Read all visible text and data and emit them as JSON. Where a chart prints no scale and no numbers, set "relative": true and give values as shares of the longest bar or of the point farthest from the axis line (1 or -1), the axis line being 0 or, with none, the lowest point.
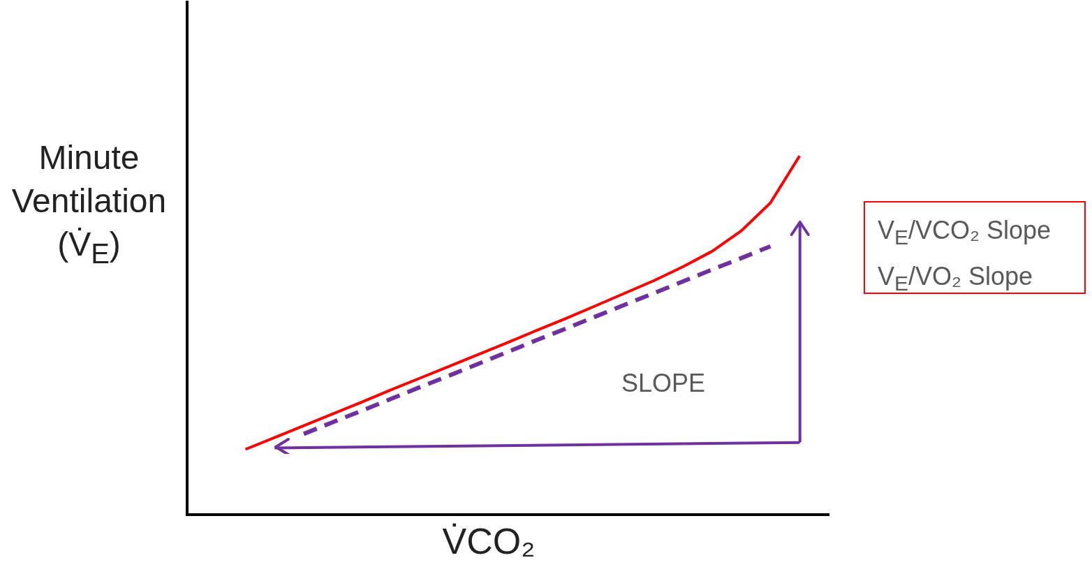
{
  "chart_data": {
    "type": "line",
    "relative": true,
    "marker": "none",
    "categories": [
      null,
      null,
      null,
      null,
      null,
      null,
      null,
      null,
      null,
      null,
      null,
      null,
      null,
      null,
      null,
      null,
      null,
      null,
      null,
      null,
      null,
      null,
      null
    ],
    "series": [
      {
        "color": "#ff0000",
        "values": [
          null,
          null,
          0.182,
          0.215,
          0.248,
          0.281,
          0.314,
          0.348,
          0.381,
          0.414,
          0.447,
          0.48,
          0.514,
          0.547,
          0.582,
          0.617,
          0.652,
          0.691,
          0.734,
          0.791,
          0.869,
          1,
          null
        ]
      },
      {
        "type": "line",
        "line_style": "dashed",
        "color": "#7030a0",
        "values": [
          null,
          null,
          null,
          null,
          0.225,
          0.258,
          0.29,
          0.323,
          0.356,
          0.388,
          0.421,
          0.454,
          0.487,
          0.519,
          0.552,
          0.585,
          0.617,
          0.65,
          0.683,
          0.715,
          0.748,
          null,
          null
        ]
      },
      {
        "type": "line",
        "line_style": "solid",
        "color": "#7030a0",
        "values": [
          null,
          null,
          null,
          0.186,
          null,
          null,
          null,
          null,
          null,
          null,
          null,
          null,
          null,
          null,
          null,
          null,
          null,
          null,
          null,
          null,
          null,
          0.201,
          null
        ]
      }
    ],
    "xlabel": "V̇CO₂",
    "ylabel": "Minute Ventilation (V̇$_{E}$)",
    "annotations": [
      "SLOPE",
      "V$_{E}$/VCO₂ Slope",
      "V$_{E}$/VO₂ Slope"
    ]
  }
}
